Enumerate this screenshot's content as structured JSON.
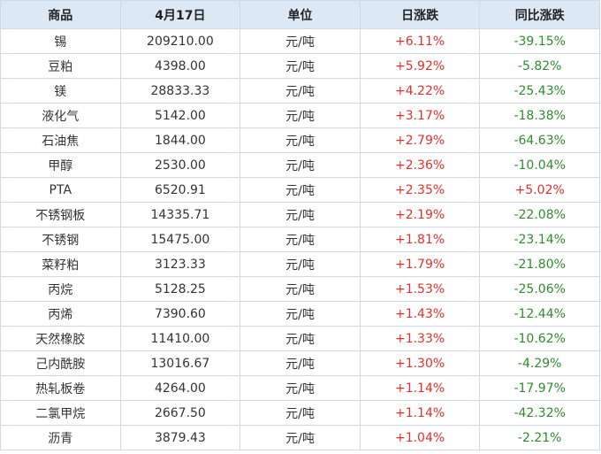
{
  "table": {
    "header": [
      "商品",
      "4月17日",
      "单位",
      "日涨跌",
      "同比涨跌"
    ],
    "rows": [
      [
        "锡",
        "209210.00",
        "元/吨",
        "+6.11%",
        "-39.15%"
      ],
      [
        "豆粕",
        "4398.00",
        "元/吨",
        "+5.92%",
        "-5.82%"
      ],
      [
        "镁",
        "28833.33",
        "元/吨",
        "+4.22%",
        "-25.43%"
      ],
      [
        "液化气",
        "5142.00",
        "元/吨",
        "+3.17%",
        "-18.38%"
      ],
      [
        "石油焦",
        "1844.00",
        "元/吨",
        "+2.79%",
        "-64.63%"
      ],
      [
        "甲醇",
        "2530.00",
        "元/吨",
        "+2.36%",
        "-10.04%"
      ],
      [
        "PTA",
        "6520.91",
        "元/吨",
        "+2.35%",
        "+5.02%"
      ],
      [
        "不锈钢板",
        "14335.71",
        "元/吨",
        "+2.19%",
        "-22.08%"
      ],
      [
        "不锈钢",
        "15475.00",
        "元/吨",
        "+1.81%",
        "-23.14%"
      ],
      [
        "菜籽粕",
        "3123.33",
        "元/吨",
        "+1.79%",
        "-21.80%"
      ],
      [
        "丙烷",
        "5128.25",
        "元/吨",
        "+1.53%",
        "-25.06%"
      ],
      [
        "丙烯",
        "7390.60",
        "元/吨",
        "+1.43%",
        "-12.44%"
      ],
      [
        "天然橡胶",
        "11410.00",
        "元/吨",
        "+1.33%",
        "-10.62%"
      ],
      [
        "己内酰胺",
        "13016.67",
        "元/吨",
        "+1.30%",
        "-4.29%"
      ],
      [
        "热轧板卷",
        "4264.00",
        "元/吨",
        "+1.14%",
        "-17.97%"
      ],
      [
        "二氯甲烷",
        "2667.50",
        "元/吨",
        "+1.14%",
        "-42.32%"
      ],
      [
        "沥青",
        "3879.43",
        "元/吨",
        "+1.04%",
        "-2.21%"
      ]
    ]
  }
}
